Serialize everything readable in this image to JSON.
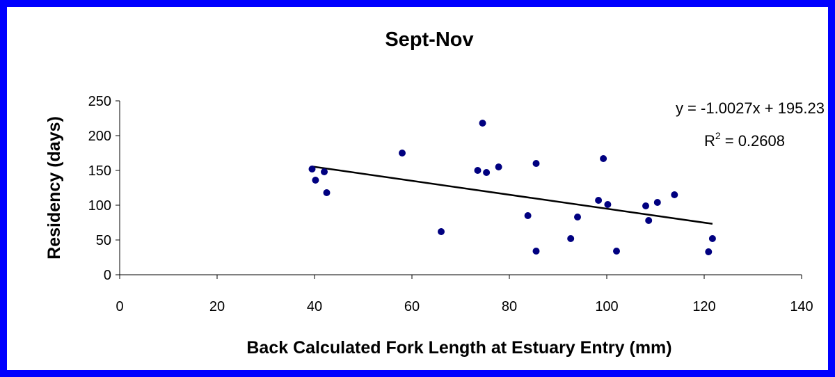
{
  "chart_data": {
    "type": "scatter",
    "title": "Sept-Nov",
    "x_label": "Back Calculated Fork Length at Estuary Entry (mm)",
    "y_label": "Residency (days)",
    "xlim": [
      0,
      140
    ],
    "xticks": [
      0,
      20,
      40,
      60,
      80,
      100,
      120,
      140
    ],
    "ylim": [
      0,
      250
    ],
    "yticks": [
      0,
      50,
      100,
      150,
      200,
      250
    ],
    "grid": false,
    "series": [
      {
        "color": "#000080",
        "x": [
          39.5,
          40.2,
          42,
          42.5,
          58,
          66,
          73.5,
          74.5,
          75.3,
          77.8,
          83.8,
          85.5,
          85.5,
          92.6,
          94,
          98.3,
          99.3,
          100.2,
          102,
          108,
          108.6,
          110.4,
          113.9,
          121.7,
          120.9
        ],
        "values": [
          152,
          136,
          148,
          118,
          175,
          62,
          150,
          218,
          147,
          155,
          85,
          160,
          34,
          52,
          83,
          107,
          167,
          101,
          34,
          99,
          78,
          104,
          115,
          52,
          33
        ]
      }
    ],
    "trendline": {
      "slope": -1.0027,
      "intercept": 195.23,
      "color": "#000000",
      "equation": "y = -1.0027x + 195.23",
      "r2": {
        "base": "R",
        "sup": "2",
        "rest": " = 0.2608"
      }
    }
  }
}
